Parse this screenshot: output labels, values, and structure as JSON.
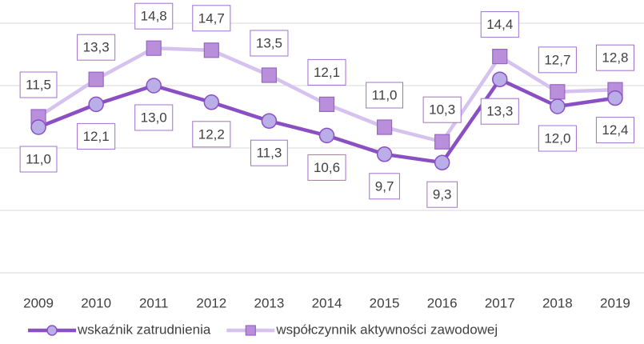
{
  "chart_data": {
    "type": "line",
    "categories": [
      "2009",
      "2010",
      "2011",
      "2012",
      "2013",
      "2014",
      "2015",
      "2016",
      "2017",
      "2018",
      "2019"
    ],
    "series": [
      {
        "name": "wskaźnik zatrudnienia",
        "color": "#8b4fc4",
        "marker": "circle",
        "marker_color": "#b9aee8",
        "values": [
          11.0,
          12.1,
          13.0,
          12.2,
          11.3,
          10.6,
          9.7,
          9.3,
          13.3,
          12.0,
          12.4
        ],
        "value_labels": [
          "11,0",
          "12,1",
          "13,0",
          "12,2",
          "11,3",
          "10,6",
          "9,7",
          "9,3",
          "13,3",
          "12,0",
          "12,4"
        ]
      },
      {
        "name": "współczynnik aktywności zawodowej",
        "color": "#d6c2ee",
        "marker": "square",
        "marker_color": "#b98fdc",
        "values": [
          11.5,
          13.3,
          14.8,
          14.7,
          13.5,
          12.1,
          11.0,
          10.3,
          14.4,
          12.7,
          12.8
        ],
        "value_labels": [
          "11,5",
          "13,3",
          "14,8",
          "14,7",
          "13,5",
          "12,1",
          "11,0",
          "10,3",
          "14,4",
          "12,7",
          "12,8"
        ]
      }
    ],
    "ylim": [
      4,
      16
    ],
    "yticks": [
      4,
      7,
      10,
      13,
      16
    ],
    "grid": true,
    "legend": "bottom"
  }
}
